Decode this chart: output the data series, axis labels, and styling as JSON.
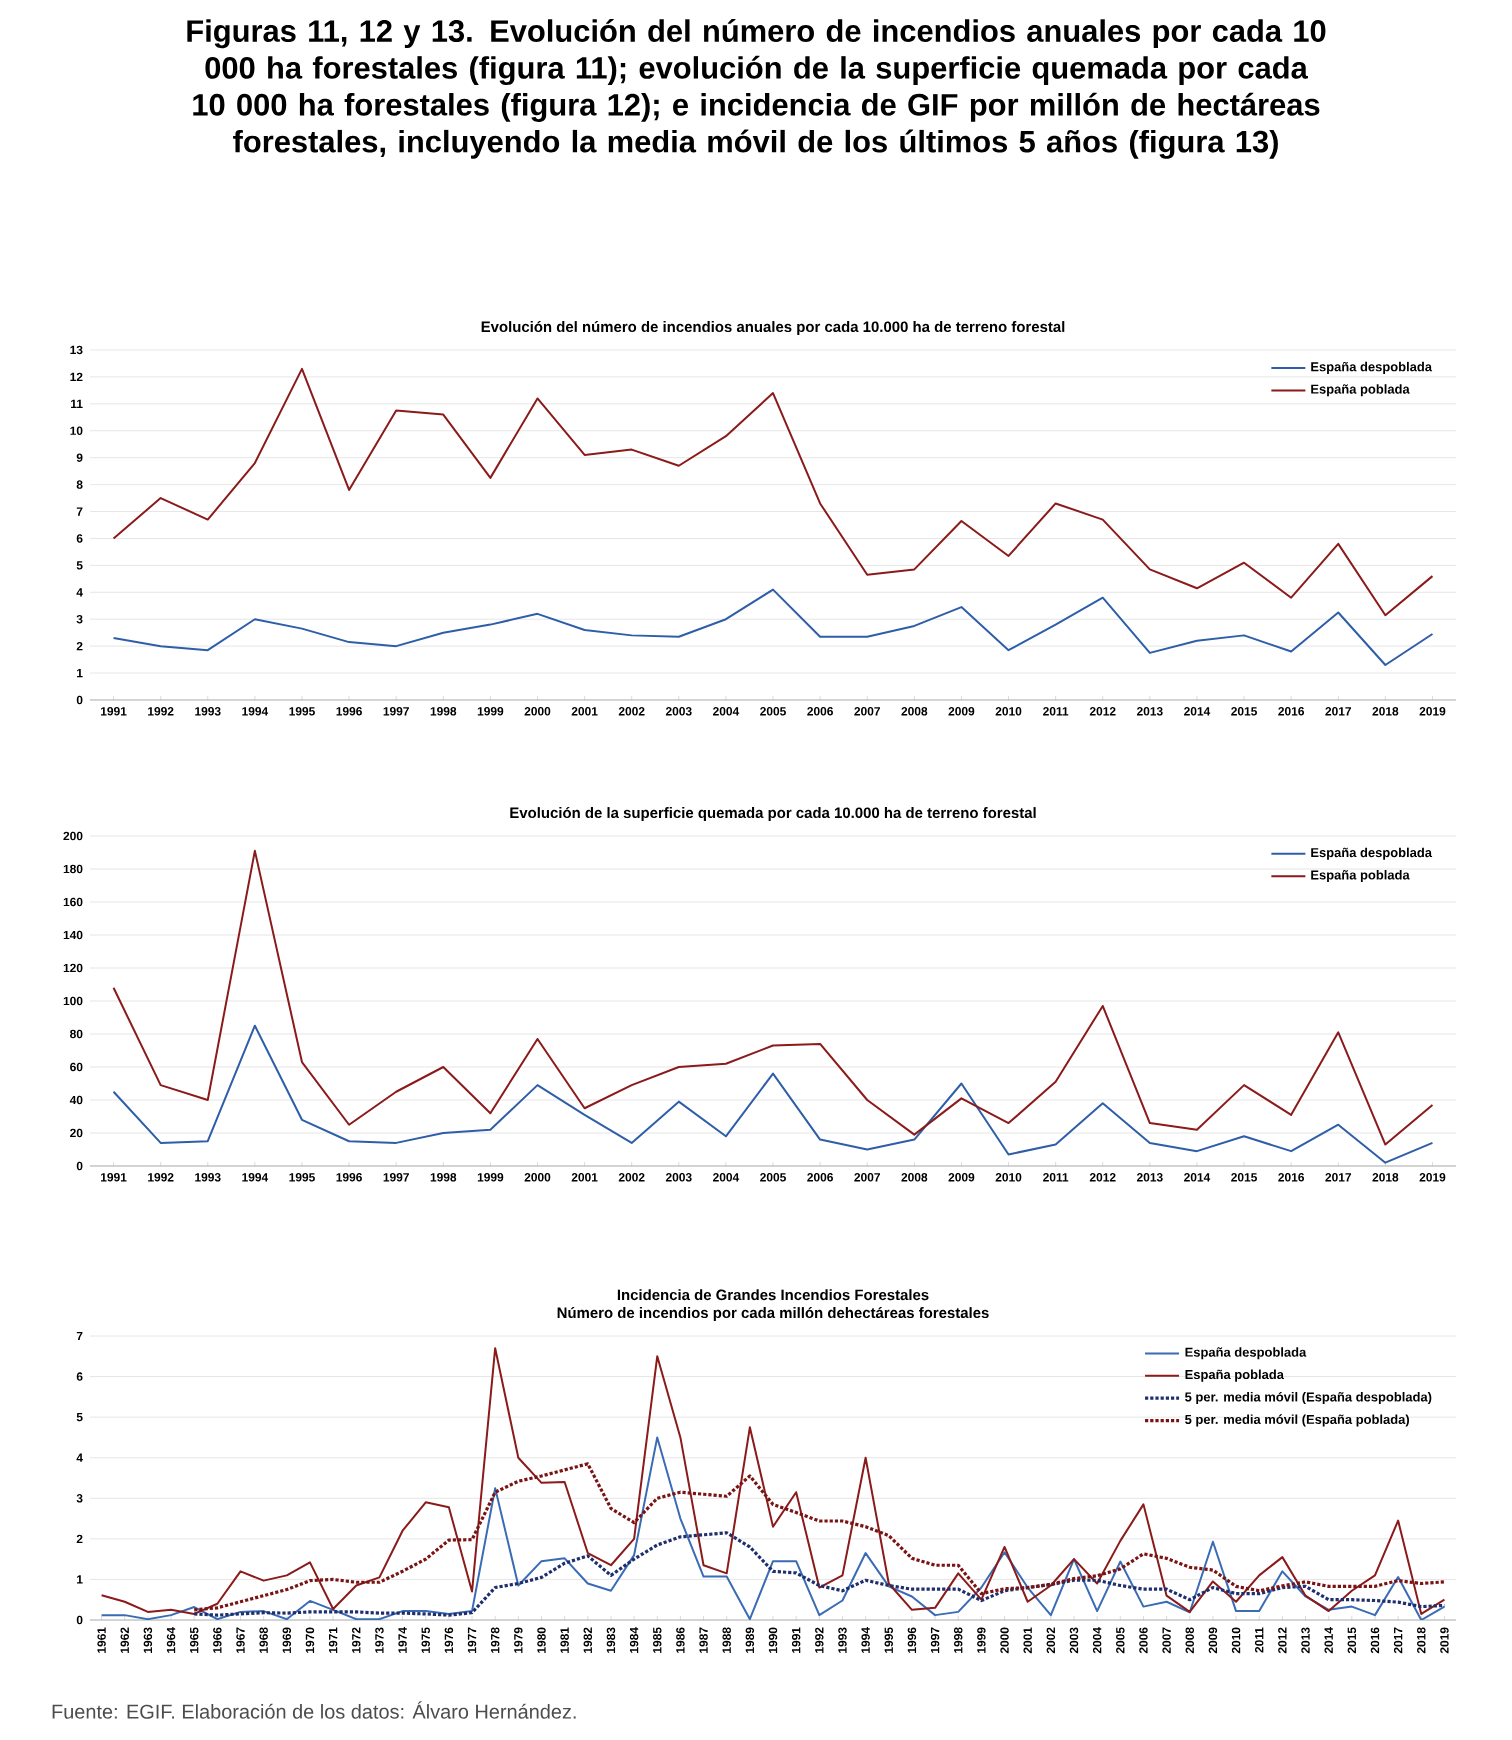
{
  "chart_data": [
    {
      "type": "line",
      "title": "Evolución del número de incendios anuales por cada 10.000 ha de terreno forestal",
      "annotations": [
        "Figuras 11, 12 y 13. Evolución del número de incendios anuales por cada 10 000 ha forestales (figura 11); evolución de la superficie quemada por cada 10 000 ha forestales (figura 12); e incidencia de GIF por millón de hectáreas forestales, incluyendo la media móvil de los últimos 5 años (figura 13)"
      ],
      "categories": [
        "1991",
        "1992",
        "1993",
        "1994",
        "1995",
        "1996",
        "1997",
        "1998",
        "1999",
        "2000",
        "2001",
        "2002",
        "2003",
        "2004",
        "2005",
        "2006",
        "2007",
        "2008",
        "2009",
        "2010",
        "2011",
        "2012",
        "2013",
        "2014",
        "2015",
        "2016",
        "2017",
        "2018",
        "2019"
      ],
      "ylim": [
        0,
        13
      ],
      "yticks": [
        0,
        1,
        2,
        3,
        4,
        5,
        6,
        7,
        8,
        9,
        10,
        11,
        12,
        13
      ],
      "grid": "y",
      "legend": "top right",
      "series": [
        {
          "name": "España despoblada",
          "color": "#2e5ea8",
          "line_style": "solid",
          "values": [
            2.3,
            2.0,
            1.85,
            3.0,
            2.65,
            2.15,
            2.0,
            2.5,
            2.8,
            3.2,
            2.6,
            2.4,
            2.35,
            3.0,
            4.1,
            2.35,
            2.35,
            2.75,
            3.45,
            1.85,
            2.8,
            3.8,
            1.75,
            2.2,
            2.4,
            1.8,
            3.25,
            1.3,
            2.45
          ]
        },
        {
          "name": "España poblada",
          "color": "#8b1a1a",
          "line_style": "solid",
          "values": [
            6.0,
            7.5,
            6.7,
            8.8,
            12.3,
            7.8,
            10.75,
            10.6,
            8.25,
            11.2,
            9.1,
            9.3,
            8.7,
            9.8,
            11.4,
            7.3,
            4.65,
            4.85,
            6.65,
            5.35,
            7.3,
            6.7,
            4.85,
            4.15,
            5.1,
            3.8,
            5.8,
            3.15,
            4.6
          ]
        }
      ]
    },
    {
      "type": "line",
      "title": "Evolución de la superficie quemada por cada 10.000 ha de terreno forestal",
      "categories": [
        "1991",
        "1992",
        "1993",
        "1994",
        "1995",
        "1996",
        "1997",
        "1998",
        "1999",
        "2000",
        "2001",
        "2002",
        "2003",
        "2004",
        "2005",
        "2006",
        "2007",
        "2008",
        "2009",
        "2010",
        "2011",
        "2012",
        "2013",
        "2014",
        "2015",
        "2016",
        "2017",
        "2018",
        "2019"
      ],
      "ylim": [
        0,
        200
      ],
      "yticks": [
        0,
        20,
        40,
        60,
        80,
        100,
        120,
        140,
        160,
        180,
        200
      ],
      "grid": "y",
      "legend": "top right",
      "series": [
        {
          "name": "España despoblada",
          "color": "#2e5ea8",
          "line_style": "solid",
          "values": [
            45,
            14,
            15,
            85,
            28,
            15,
            14,
            20,
            22,
            49,
            31,
            14,
            39,
            18,
            56,
            16,
            10,
            16,
            50,
            7,
            13,
            38,
            14,
            9,
            18,
            9,
            25,
            2,
            14
          ]
        },
        {
          "name": "España poblada",
          "color": "#8b1a1a",
          "line_style": "solid",
          "values": [
            108,
            49,
            40,
            191,
            63,
            25,
            45,
            60,
            32,
            77,
            35,
            49,
            60,
            62,
            73,
            74,
            40,
            19,
            41,
            26,
            51,
            97,
            26,
            22,
            49,
            31,
            81,
            13,
            37
          ]
        }
      ]
    },
    {
      "type": "line",
      "title": "Incidencia de Grandes Incendios Forestales",
      "subtitle": "Número de incendios por cada millón dehectáreas forestales",
      "annotations": [
        "Fuente: EGIF. Elaboración de los datos: Álvaro Hernández."
      ],
      "categories": [
        "1961",
        "1962",
        "1963",
        "1964",
        "1965",
        "1966",
        "1967",
        "1968",
        "1969",
        "1970",
        "1971",
        "1972",
        "1973",
        "1974",
        "1975",
        "1976",
        "1977",
        "1978",
        "1979",
        "1980",
        "1981",
        "1982",
        "1983",
        "1984",
        "1985",
        "1986",
        "1987",
        "1988",
        "1989",
        "1990",
        "1991",
        "1992",
        "1993",
        "1994",
        "1995",
        "1996",
        "1997",
        "1998",
        "1999",
        "2000",
        "2001",
        "2002",
        "2003",
        "2004",
        "2005",
        "2006",
        "2007",
        "2008",
        "2009",
        "2010",
        "2011",
        "2012",
        "2013",
        "2014",
        "2015",
        "2016",
        "2017",
        "2018",
        "2019"
      ],
      "ylim": [
        0,
        7
      ],
      "yticks": [
        0,
        1,
        2,
        3,
        4,
        5,
        6,
        7
      ],
      "grid": "y",
      "legend": "top right",
      "series": [
        {
          "name": "España despoblada",
          "color": "#3a6bb5",
          "line_style": "solid",
          "values": [
            0.12,
            0.12,
            0.02,
            0.12,
            0.32,
            0.02,
            0.2,
            0.22,
            0.02,
            0.47,
            0.25,
            0.02,
            0.02,
            0.22,
            0.22,
            0.15,
            0.22,
            3.25,
            0.85,
            1.45,
            1.52,
            0.9,
            0.72,
            1.6,
            4.5,
            2.5,
            1.07,
            1.07,
            0.02,
            1.45,
            1.45,
            0.12,
            0.48,
            1.65,
            0.83,
            0.58,
            0.12,
            0.2,
            0.8,
            1.67,
            0.8,
            0.12,
            1.5,
            0.22,
            1.44,
            0.33,
            0.45,
            0.19,
            1.93,
            0.22,
            0.22,
            1.2,
            0.58,
            0.25,
            0.33,
            0.12,
            1.06,
            0.0,
            0.33
          ]
        },
        {
          "name": "España poblada",
          "color": "#8b1a1a",
          "line_style": "solid",
          "values": [
            0.61,
            0.45,
            0.2,
            0.25,
            0.15,
            0.4,
            1.2,
            0.97,
            1.1,
            1.42,
            0.27,
            0.85,
            1.05,
            2.2,
            2.9,
            2.78,
            0.7,
            6.7,
            4.0,
            3.38,
            3.4,
            1.65,
            1.35,
            2.0,
            6.5,
            4.5,
            1.35,
            1.15,
            4.75,
            2.3,
            3.15,
            0.8,
            1.1,
            4.0,
            0.9,
            0.25,
            0.3,
            1.15,
            0.5,
            1.8,
            0.45,
            0.85,
            1.5,
            0.9,
            1.95,
            2.85,
            0.6,
            0.2,
            0.95,
            0.45,
            1.1,
            1.55,
            0.6,
            0.22,
            0.72,
            1.1,
            2.45,
            0.15,
            0.5
          ]
        },
        {
          "name": "5 per. media móvil (España despoblada)",
          "color": "#1f2f6e",
          "line_style": "dotted",
          "values": [
            null,
            null,
            null,
            null,
            0.15,
            0.12,
            0.15,
            0.18,
            0.17,
            0.2,
            0.2,
            0.2,
            0.17,
            0.17,
            0.15,
            0.12,
            0.18,
            0.8,
            0.9,
            1.05,
            1.4,
            1.58,
            1.1,
            1.5,
            1.85,
            2.05,
            2.1,
            2.15,
            1.8,
            1.2,
            1.16,
            0.85,
            0.72,
            0.98,
            0.85,
            0.76,
            0.76,
            0.76,
            0.48,
            0.72,
            0.8,
            0.87,
            0.98,
            0.98,
            0.85,
            0.76,
            0.76,
            0.5,
            0.8,
            0.65,
            0.65,
            0.8,
            0.83,
            0.5,
            0.5,
            0.48,
            0.44,
            0.33,
            0.36
          ]
        },
        {
          "name": "5 per. media móvil (España poblada)",
          "color": "#7a1414",
          "line_style": "dotted",
          "values": [
            null,
            null,
            null,
            null,
            0.25,
            0.3,
            0.45,
            0.6,
            0.75,
            0.97,
            1.0,
            0.93,
            0.93,
            1.2,
            1.5,
            1.97,
            1.98,
            3.15,
            3.42,
            3.55,
            3.7,
            3.85,
            2.75,
            2.4,
            3.0,
            3.15,
            3.1,
            3.05,
            3.55,
            2.85,
            2.65,
            2.44,
            2.44,
            2.3,
            2.08,
            1.52,
            1.35,
            1.35,
            0.65,
            0.77,
            0.8,
            0.88,
            1.02,
            1.09,
            1.26,
            1.63,
            1.52,
            1.3,
            1.23,
            0.83,
            0.72,
            0.84,
            0.94,
            0.83,
            0.83,
            0.83,
            0.97,
            0.9,
            0.94
          ]
        }
      ]
    }
  ]
}
